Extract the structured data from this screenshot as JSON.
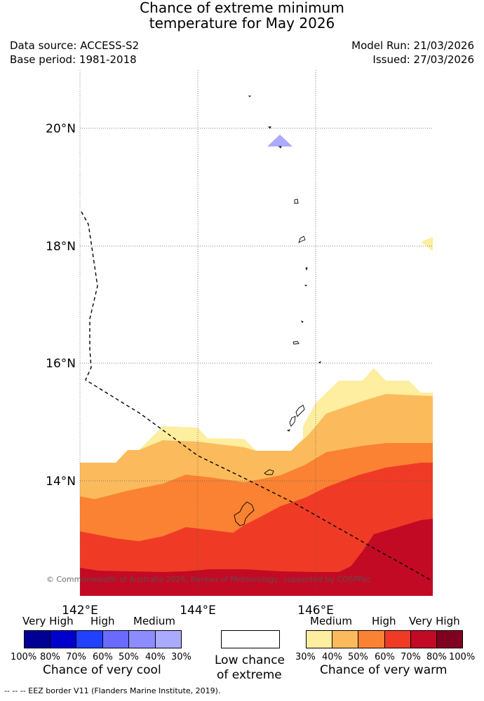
{
  "header": {
    "title_line1": "Chance of extreme minimum",
    "title_line2": "temperature for May 2026",
    "data_source": "Data source: ACCESS-S2",
    "base_period": "Base period: 1981-2018",
    "model_run": "Model Run: 21/03/2026",
    "issued": "Issued: 27/03/2026"
  },
  "map": {
    "lat_labels": [
      "20°N",
      "18°N",
      "16°N",
      "14°N"
    ],
    "lon_labels": [
      "142°E",
      "144°E",
      "146°E"
    ],
    "copyright": "© Commonwealth of Australia 2026, Bureau of Meteorology, supported by COSPPac",
    "eez_line_style": "dashed",
    "colors": {
      "warm_30_40": "#fdeea0",
      "warm_40_50": "#fbbb5c",
      "warm_50_60": "#fb8233",
      "warm_60_70": "#ef3b26",
      "warm_70_80": "#c20a24",
      "cool_30_40": "#aaaaff"
    }
  },
  "legend": {
    "cool": {
      "headings": [
        "Very High",
        "High",
        "Medium"
      ],
      "colors": [
        "#000095",
        "#0000cc",
        "#2140ff",
        "#6a6aff",
        "#8c8cff",
        "#aaaaff"
      ],
      "percents": [
        "100%",
        "80%",
        "70%",
        "60%",
        "50%",
        "40%",
        "30%"
      ],
      "caption": "Chance of very cool"
    },
    "neutral": {
      "color": "#ffffff",
      "caption_line1": "Low chance",
      "caption_line2": "of extreme"
    },
    "warm": {
      "headings": [
        "Medium",
        "High",
        "Very High"
      ],
      "colors": [
        "#fdeea0",
        "#fbbb5c",
        "#fb8233",
        "#ef3b26",
        "#c20a24",
        "#800020"
      ],
      "percents": [
        "30%",
        "40%",
        "50%",
        "60%",
        "70%",
        "80%",
        "100%"
      ],
      "caption": "Chance of very warm"
    },
    "footnote": "--  --  -- EEZ border V11 (Flanders Marine Institute, 2019)."
  }
}
